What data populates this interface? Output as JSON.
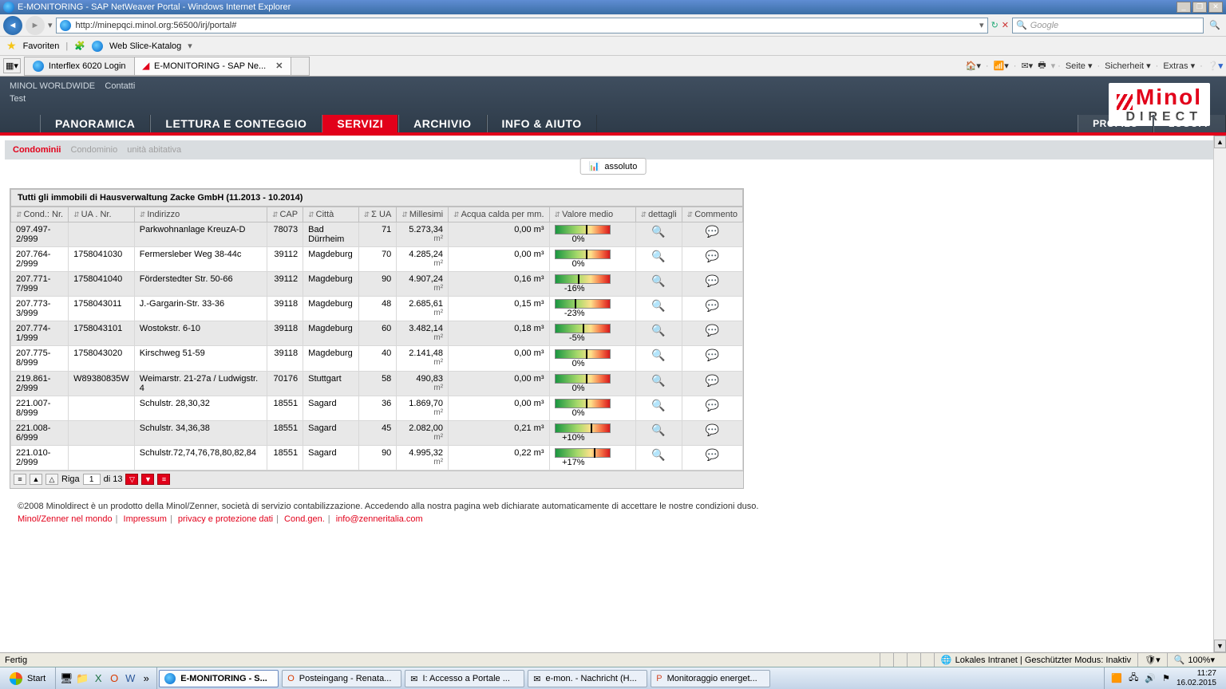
{
  "window": {
    "title": "E-MONITORING - SAP NetWeaver Portal - Windows Internet Explorer",
    "url": "http://minepqci.minol.org:56500/irj/portal#",
    "search_placeholder": "Google",
    "favorites_label": "Favoriten",
    "webslice_label": "Web Slice-Katalog",
    "tab1": "Interflex 6020 Login",
    "tab2": "E-MONITORING - SAP Ne...",
    "cmd_seite": "Seite",
    "cmd_sicherheit": "Sicherheit",
    "cmd_extras": "Extras"
  },
  "portal": {
    "topline": "MINOL WORLDWIDE",
    "contatti": "Contatti",
    "test": "Test",
    "logo_main": "Minol",
    "logo_sub": "DIRECT",
    "menu": {
      "panoramica": "PANORAMICA",
      "lettura": "LETTURA E CONTEGGIO",
      "servizi": "SERVIZI",
      "archivio": "ARCHIVIO",
      "info": "INFO & AIUTO",
      "profilo": "PROFILO",
      "logoff": "LOGOFF"
    }
  },
  "breadcrumb": {
    "lvl1": "Condominii",
    "lvl2": "Condominio",
    "lvl3": "unità abitativa"
  },
  "abs_button": "assoluto",
  "panel_title": "Tutti gli immobili di Hausverwaltung Zacke GmbH (11.2013 - 10.2014)",
  "columns": {
    "cond": "Cond.: Nr.",
    "ua": "UA . Nr.",
    "indirizzo": "Indirizzo",
    "cap": "CAP",
    "citta": "Città",
    "sigma": "Σ UA",
    "millesimi": "Millesimi",
    "acqua": "Acqua calda per mm.",
    "valore": "Valore medio",
    "dettagli": "dettagli",
    "commento": "Commento"
  },
  "unit_m3": "m³",
  "unit_m2": "m²",
  "rows": [
    {
      "cond": "097.497-2/999",
      "ua": "",
      "ind": "Parkwohnanlage KreuzA-D",
      "cap": "78073",
      "citta": "Bad Dürrheim",
      "sua": "71",
      "mil": "5.273,34",
      "acq": "0,00",
      "pct": "0%",
      "tick": 38
    },
    {
      "cond": "207.764-2/999",
      "ua": "1758041030",
      "ind": "Fermersleber Weg 38-44c",
      "cap": "39112",
      "citta": "Magdeburg",
      "sua": "70",
      "mil": "4.285,24",
      "acq": "0,00",
      "pct": "0%",
      "tick": 38
    },
    {
      "cond": "207.771-7/999",
      "ua": "1758041040",
      "ind": "Förderstedter Str. 50-66",
      "cap": "39112",
      "citta": "Magdeburg",
      "sua": "90",
      "mil": "4.907,24",
      "acq": "0,16",
      "pct": "-16%",
      "tick": 28
    },
    {
      "cond": "207.773-3/999",
      "ua": "1758043011",
      "ind": "J.-Gargarin-Str. 33-36",
      "cap": "39118",
      "citta": "Magdeburg",
      "sua": "48",
      "mil": "2.685,61",
      "acq": "0,15",
      "pct": "-23%",
      "tick": 24
    },
    {
      "cond": "207.774-1/999",
      "ua": "1758043101",
      "ind": "Wostokstr. 6-10",
      "cap": "39118",
      "citta": "Magdeburg",
      "sua": "60",
      "mil": "3.482,14",
      "acq": "0,18",
      "pct": "-5%",
      "tick": 34
    },
    {
      "cond": "207.775-8/999",
      "ua": "1758043020",
      "ind": "Kirschweg 51-59",
      "cap": "39118",
      "citta": "Magdeburg",
      "sua": "40",
      "mil": "2.141,48",
      "acq": "0,00",
      "pct": "0%",
      "tick": 38
    },
    {
      "cond": "219.861-2/999",
      "ua": "W89380835W",
      "ind": "Weimarstr. 21-27a / Ludwigstr. 4",
      "cap": "70176",
      "citta": "Stuttgart",
      "sua": "58",
      "mil": "490,83",
      "acq": "0,00",
      "pct": "0%",
      "tick": 38
    },
    {
      "cond": "221.007-8/999",
      "ua": "",
      "ind": "Schulstr. 28,30,32",
      "cap": "18551",
      "citta": "Sagard",
      "sua": "36",
      "mil": "1.869,70",
      "acq": "0,00",
      "pct": "0%",
      "tick": 38
    },
    {
      "cond": "221.008-6/999",
      "ua": "",
      "ind": "Schulstr. 34,36,38",
      "cap": "18551",
      "citta": "Sagard",
      "sua": "45",
      "mil": "2.082,00",
      "acq": "0,21",
      "pct": "+10%",
      "tick": 44
    },
    {
      "cond": "221.010-2/999",
      "ua": "",
      "ind": "Schulstr.72,74,76,78,80,82,84",
      "cap": "18551",
      "citta": "Sagard",
      "sua": "90",
      "mil": "4.995,32",
      "acq": "0,22",
      "pct": "+17%",
      "tick": 48
    }
  ],
  "pager": {
    "riga": "Riga",
    "page": "1",
    "di": "di 13"
  },
  "footer": {
    "copy": "©2008 Minoldirect è un prodotto della Minol/Zenner, società di servizio contabilizzazione. Accedendo alla nostra pagina web dichiarate automaticamente di accettare le nostre condizioni duso.",
    "l1": "Minol/Zenner nel mondo",
    "l2": "Impressum",
    "l3": "privacy e protezione dati",
    "l4": "Cond.gen.",
    "l5": "info@zenneritalia.com"
  },
  "status": {
    "fertig": "Fertig",
    "zone": "Lokales Intranet | Geschützter Modus: Inaktiv",
    "zoom": "100%"
  },
  "taskbar": {
    "start": "Start",
    "t1": "E-MONITORING - S...",
    "t2": "Posteingang - Renata...",
    "t3": "I: Accesso a Portale ...",
    "t4": "e-mon. - Nachricht (H...",
    "t5": "Monitoraggio energet...",
    "time": "11:27",
    "date": "16.02.2015"
  },
  "colors": {
    "accent_red": "#e2001a",
    "header_bg": "#3f4e5f",
    "row_odd": "#e8e8e8"
  }
}
